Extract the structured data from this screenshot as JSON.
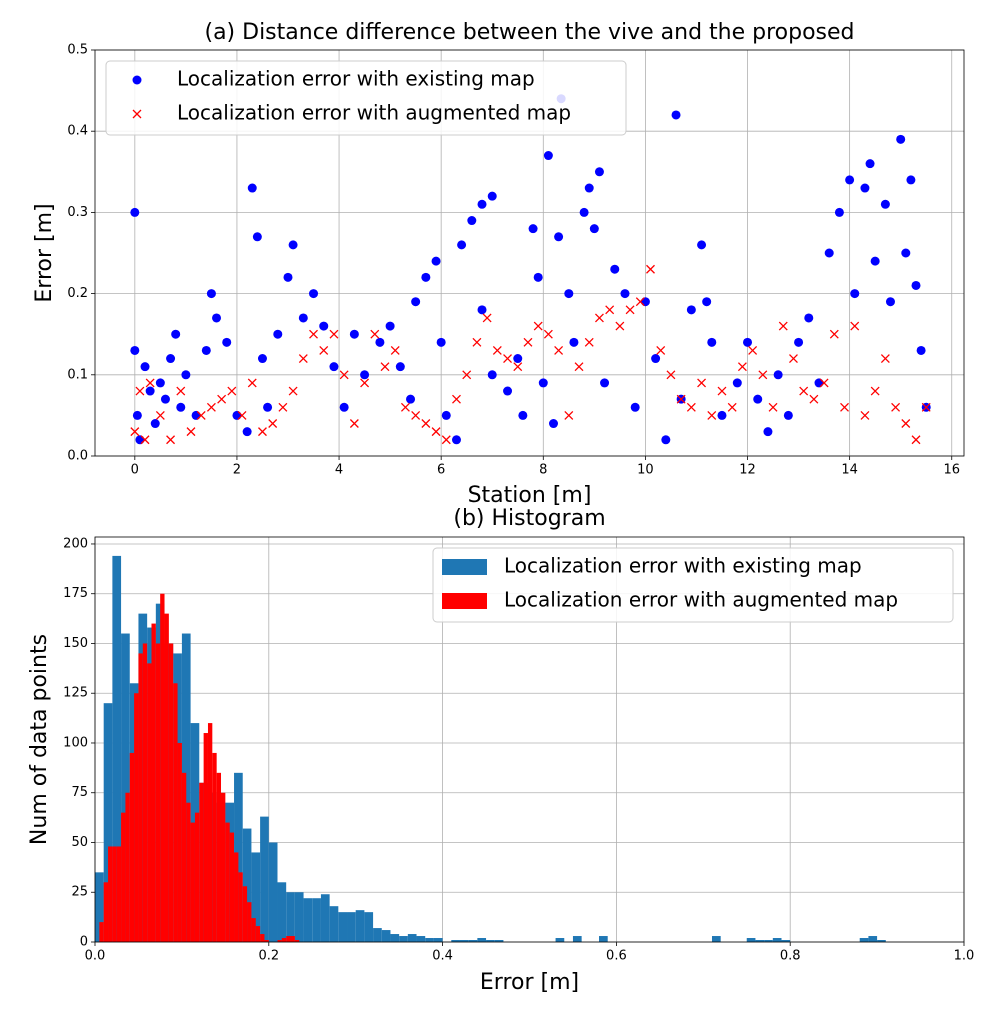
{
  "chart_data": [
    {
      "type": "scatter",
      "title": "(a) Distance difference between the vive and the proposed",
      "x_label": "Station [m]",
      "y_label": "Error [m]",
      "xlim": [
        -0.78,
        16.24
      ],
      "ylim": [
        0,
        0.5
      ],
      "xticks": [
        0,
        2,
        4,
        6,
        8,
        10,
        12,
        14,
        16
      ],
      "yticks": [
        {
          "value": 0,
          "label": "0.0"
        },
        {
          "value": 0.1,
          "label": "0.1"
        },
        {
          "value": 0.2,
          "label": "0.2"
        },
        {
          "value": 0.3,
          "label": "0.3"
        },
        {
          "value": 0.4,
          "label": "0.4"
        },
        {
          "value": 0.5,
          "label": "0.5"
        }
      ],
      "grid": true,
      "legend": "upper left",
      "series": [
        {
          "name": "Localization error with existing map",
          "color": "#0000ff",
          "marker": "o",
          "x": [
            0,
            0,
            0.05,
            0.1,
            0.2,
            0.3,
            0.4,
            0.5,
            0.6,
            0.7,
            0.8,
            0.9,
            1.0,
            1.2,
            1.4,
            1.5,
            1.6,
            1.8,
            2.0,
            2.2,
            2.3,
            2.4,
            2.5,
            2.6,
            2.8,
            3.0,
            3.1,
            3.3,
            3.5,
            3.7,
            3.9,
            4.1,
            4.3,
            4.5,
            4.8,
            5.0,
            5.2,
            5.4,
            5.5,
            5.7,
            5.9,
            6.0,
            6.1,
            6.3,
            6.4,
            6.6,
            6.8,
            7.0,
            6.8,
            7.0,
            7.3,
            7.5,
            7.6,
            7.8,
            7.9,
            8.0,
            8.1,
            8.2,
            8.3,
            8.35,
            8.5,
            8.6,
            8.8,
            8.9,
            9.0,
            9.1,
            9.2,
            9.4,
            9.6,
            9.8,
            10.0,
            10.2,
            10.4,
            10.6,
            10.7,
            10.9,
            11.1,
            11.2,
            11.3,
            11.5,
            11.8,
            12.0,
            12.2,
            12.4,
            12.6,
            12.8,
            13.0,
            13.2,
            13.4,
            13.6,
            13.8,
            14.0,
            14.1,
            14.3,
            14.4,
            14.5,
            14.7,
            14.8,
            15.0,
            15.1,
            15.2,
            15.3,
            15.4,
            15.5
          ],
          "values": [
            0.3,
            0.13,
            0.05,
            0.02,
            0.11,
            0.08,
            0.04,
            0.09,
            0.07,
            0.12,
            0.15,
            0.06,
            0.1,
            0.05,
            0.13,
            0.2,
            0.17,
            0.14,
            0.05,
            0.03,
            0.33,
            0.27,
            0.12,
            0.06,
            0.15,
            0.22,
            0.26,
            0.17,
            0.2,
            0.16,
            0.11,
            0.06,
            0.15,
            0.1,
            0.14,
            0.16,
            0.11,
            0.07,
            0.19,
            0.22,
            0.24,
            0.14,
            0.05,
            0.02,
            0.26,
            0.29,
            0.31,
            0.32,
            0.18,
            0.1,
            0.08,
            0.12,
            0.05,
            0.28,
            0.22,
            0.09,
            0.37,
            0.04,
            0.27,
            0.44,
            0.2,
            0.14,
            0.3,
            0.33,
            0.28,
            0.35,
            0.09,
            0.23,
            0.2,
            0.06,
            0.19,
            0.12,
            0.02,
            0.42,
            0.07,
            0.18,
            0.26,
            0.19,
            0.14,
            0.05,
            0.09,
            0.14,
            0.07,
            0.03,
            0.1,
            0.05,
            0.14,
            0.17,
            0.09,
            0.25,
            0.3,
            0.34,
            0.2,
            0.33,
            0.36,
            0.24,
            0.31,
            0.19,
            0.39,
            0.25,
            0.34,
            0.21,
            0.13,
            0.06
          ]
        },
        {
          "name": "Localization error with augmented map",
          "color": "#ff0000",
          "marker": "x",
          "x": [
            0,
            0.1,
            0.2,
            0.3,
            0.5,
            0.7,
            0.9,
            1.1,
            1.3,
            1.5,
            1.7,
            1.9,
            2.1,
            2.3,
            2.5,
            2.7,
            2.9,
            3.1,
            3.3,
            3.5,
            3.7,
            3.9,
            4.1,
            4.3,
            4.5,
            4.7,
            4.9,
            5.1,
            5.3,
            5.5,
            5.7,
            5.9,
            6.1,
            6.3,
            6.5,
            6.7,
            6.9,
            7.1,
            7.3,
            7.5,
            7.7,
            7.9,
            8.1,
            8.3,
            8.5,
            8.7,
            8.9,
            9.1,
            9.3,
            9.5,
            9.7,
            9.9,
            10.1,
            10.3,
            10.5,
            10.7,
            10.9,
            11.1,
            11.3,
            11.5,
            11.7,
            11.9,
            12.1,
            12.3,
            12.5,
            12.7,
            12.9,
            13.1,
            13.3,
            13.5,
            13.7,
            13.9,
            14.1,
            14.3,
            14.5,
            14.7,
            14.9,
            15.1,
            15.3,
            15.5
          ],
          "values": [
            0.03,
            0.08,
            0.02,
            0.09,
            0.05,
            0.02,
            0.08,
            0.03,
            0.05,
            0.06,
            0.07,
            0.08,
            0.05,
            0.09,
            0.03,
            0.04,
            0.06,
            0.08,
            0.12,
            0.15,
            0.13,
            0.15,
            0.1,
            0.04,
            0.09,
            0.15,
            0.11,
            0.13,
            0.06,
            0.05,
            0.04,
            0.03,
            0.02,
            0.07,
            0.1,
            0.14,
            0.17,
            0.13,
            0.12,
            0.11,
            0.14,
            0.16,
            0.15,
            0.13,
            0.05,
            0.11,
            0.14,
            0.17,
            0.18,
            0.16,
            0.18,
            0.19,
            0.23,
            0.13,
            0.1,
            0.07,
            0.06,
            0.09,
            0.05,
            0.08,
            0.06,
            0.11,
            0.13,
            0.1,
            0.06,
            0.16,
            0.12,
            0.08,
            0.07,
            0.09,
            0.15,
            0.06,
            0.16,
            0.05,
            0.08,
            0.12,
            0.06,
            0.04,
            0.02,
            0.06
          ]
        }
      ]
    },
    {
      "type": "histogram",
      "title": "(b) Histogram",
      "x_label": "Error [m]",
      "y_label": "Num of data points",
      "xlim": [
        0,
        1
      ],
      "ylim": [
        0,
        203.5
      ],
      "xticks": [
        {
          "value": 0,
          "label": "0.0"
        },
        {
          "value": 0.2,
          "label": "0.2"
        },
        {
          "value": 0.4,
          "label": "0.4"
        },
        {
          "value": 0.6,
          "label": "0.6"
        },
        {
          "value": 0.8,
          "label": "0.8"
        },
        {
          "value": 1,
          "label": "1.0"
        }
      ],
      "yticks": [
        0,
        25,
        50,
        75,
        100,
        125,
        150,
        175,
        200
      ],
      "grid": true,
      "legend": "upper right",
      "series": [
        {
          "name": "Localization error with existing map",
          "color": "#1f77b4",
          "bins": [
            0,
            0.01,
            0.02,
            0.03,
            0.04,
            0.05,
            0.06,
            0.07,
            0.08,
            0.09,
            0.1,
            0.11,
            0.12,
            0.13,
            0.14,
            0.15,
            0.16,
            0.17,
            0.18,
            0.19,
            0.2,
            0.21,
            0.22,
            0.23,
            0.24,
            0.25,
            0.26,
            0.27,
            0.28,
            0.29,
            0.3,
            0.31,
            0.32,
            0.33,
            0.34,
            0.35,
            0.36,
            0.37,
            0.38,
            0.39,
            0.4,
            0.41,
            0.42,
            0.43,
            0.44,
            0.45,
            0.46,
            0.47,
            0.48,
            0.49,
            0.5,
            0.51,
            0.52,
            0.53,
            0.54,
            0.55,
            0.56,
            0.57,
            0.58,
            0.59,
            0.6,
            0.61,
            0.62,
            0.63,
            0.64,
            0.65,
            0.66,
            0.67,
            0.68,
            0.69,
            0.7,
            0.71,
            0.72,
            0.73,
            0.74,
            0.75,
            0.76,
            0.77,
            0.78,
            0.79,
            0.8,
            0.81,
            0.82,
            0.83,
            0.84,
            0.85,
            0.86,
            0.87,
            0.88,
            0.89,
            0.9,
            0.91
          ],
          "values": [
            35,
            120,
            194,
            155,
            130,
            165,
            158,
            170,
            150,
            145,
            155,
            110,
            80,
            75,
            70,
            70,
            85,
            57,
            45,
            63,
            50,
            30,
            25,
            25,
            22,
            22,
            24,
            18,
            15,
            15,
            16,
            15,
            7,
            6,
            4,
            3,
            4,
            3,
            2,
            2,
            0,
            1,
            1,
            1,
            2,
            1,
            1,
            0,
            0,
            0,
            0,
            0,
            0,
            2,
            0,
            3,
            0,
            0,
            3,
            0,
            0,
            0,
            0,
            0,
            0,
            0,
            0,
            0,
            0,
            0,
            0,
            3,
            0,
            0,
            0,
            2,
            1,
            1,
            2,
            1,
            0,
            0,
            0,
            0,
            0,
            0,
            0,
            0,
            2,
            3,
            1
          ]
        },
        {
          "name": "Localization error with augmented map",
          "color": "#ff0000",
          "bins": [
            0.005,
            0.01,
            0.015,
            0.02,
            0.025,
            0.03,
            0.035,
            0.04,
            0.045,
            0.05,
            0.055,
            0.06,
            0.065,
            0.07,
            0.075,
            0.08,
            0.085,
            0.09,
            0.095,
            0.1,
            0.105,
            0.11,
            0.115,
            0.12,
            0.125,
            0.13,
            0.135,
            0.14,
            0.145,
            0.15,
            0.155,
            0.16,
            0.165,
            0.17,
            0.175,
            0.18,
            0.185,
            0.19,
            0.195,
            0.2,
            0.205,
            0.21,
            0.215,
            0.22,
            0.225,
            0.23,
            0.235
          ],
          "values": [
            10,
            30,
            48,
            48,
            48,
            65,
            75,
            95,
            125,
            145,
            150,
            140,
            160,
            150,
            175,
            165,
            150,
            130,
            100,
            85,
            70,
            60,
            65,
            80,
            105,
            110,
            95,
            85,
            75,
            60,
            55,
            45,
            35,
            28,
            20,
            12,
            8,
            4,
            1,
            0,
            0,
            1,
            2,
            3,
            3,
            1
          ]
        }
      ]
    }
  ]
}
